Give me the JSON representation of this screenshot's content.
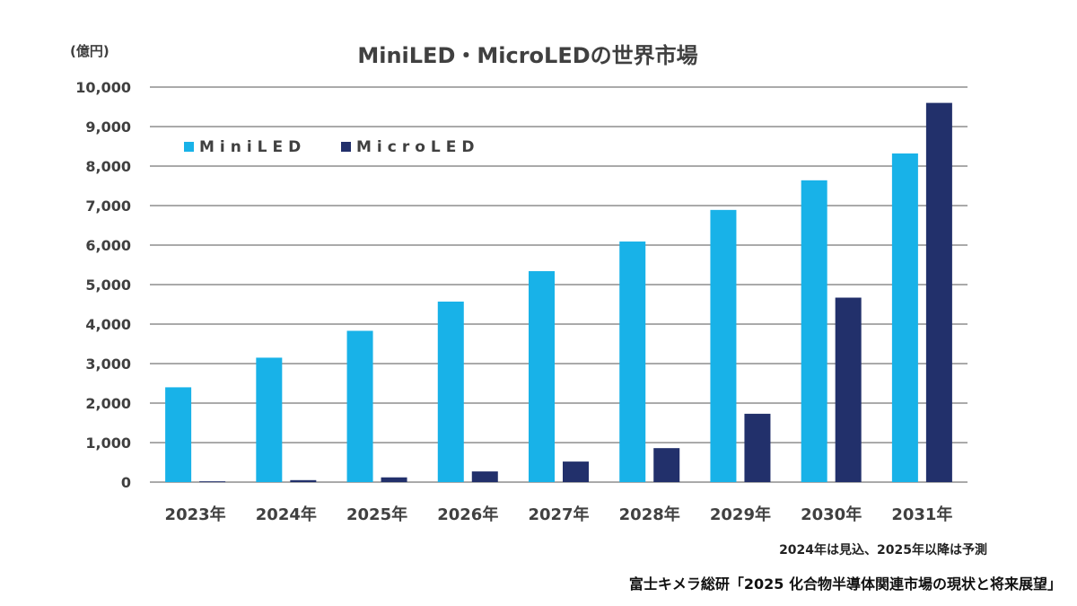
{
  "chart_data": {
    "type": "bar",
    "title": "MiniLED・MicroLEDの世界市場",
    "unit_label": "(億円)",
    "categories": [
      "2023年",
      "2024年",
      "2025年",
      "2026年",
      "2027年",
      "2028年",
      "2029年",
      "2030年",
      "2031年"
    ],
    "series": [
      {
        "name": "MiniLED",
        "color": "#18b2e8",
        "values": [
          2400,
          3150,
          3830,
          4570,
          5340,
          6090,
          6890,
          7640,
          8320
        ]
      },
      {
        "name": "MicroLED",
        "color": "#22306b",
        "values": [
          20,
          50,
          120,
          270,
          520,
          860,
          1730,
          4670,
          9600
        ]
      }
    ],
    "ylim": [
      0,
      10000
    ],
    "yticks": [
      0,
      1000,
      2000,
      3000,
      4000,
      5000,
      6000,
      7000,
      8000,
      9000,
      10000
    ],
    "ytick_labels": [
      "0",
      "1,000",
      "2,000",
      "3,000",
      "4,000",
      "5,000",
      "6,000",
      "7,000",
      "8,000",
      "9,000",
      "10,000"
    ],
    "grid": true,
    "legend_position": "top-left",
    "note": "2024年は見込、2025年以降は予測",
    "source": "富士キメラ総研「2025 化合物半導体関連市場の現状と将来展望」"
  }
}
